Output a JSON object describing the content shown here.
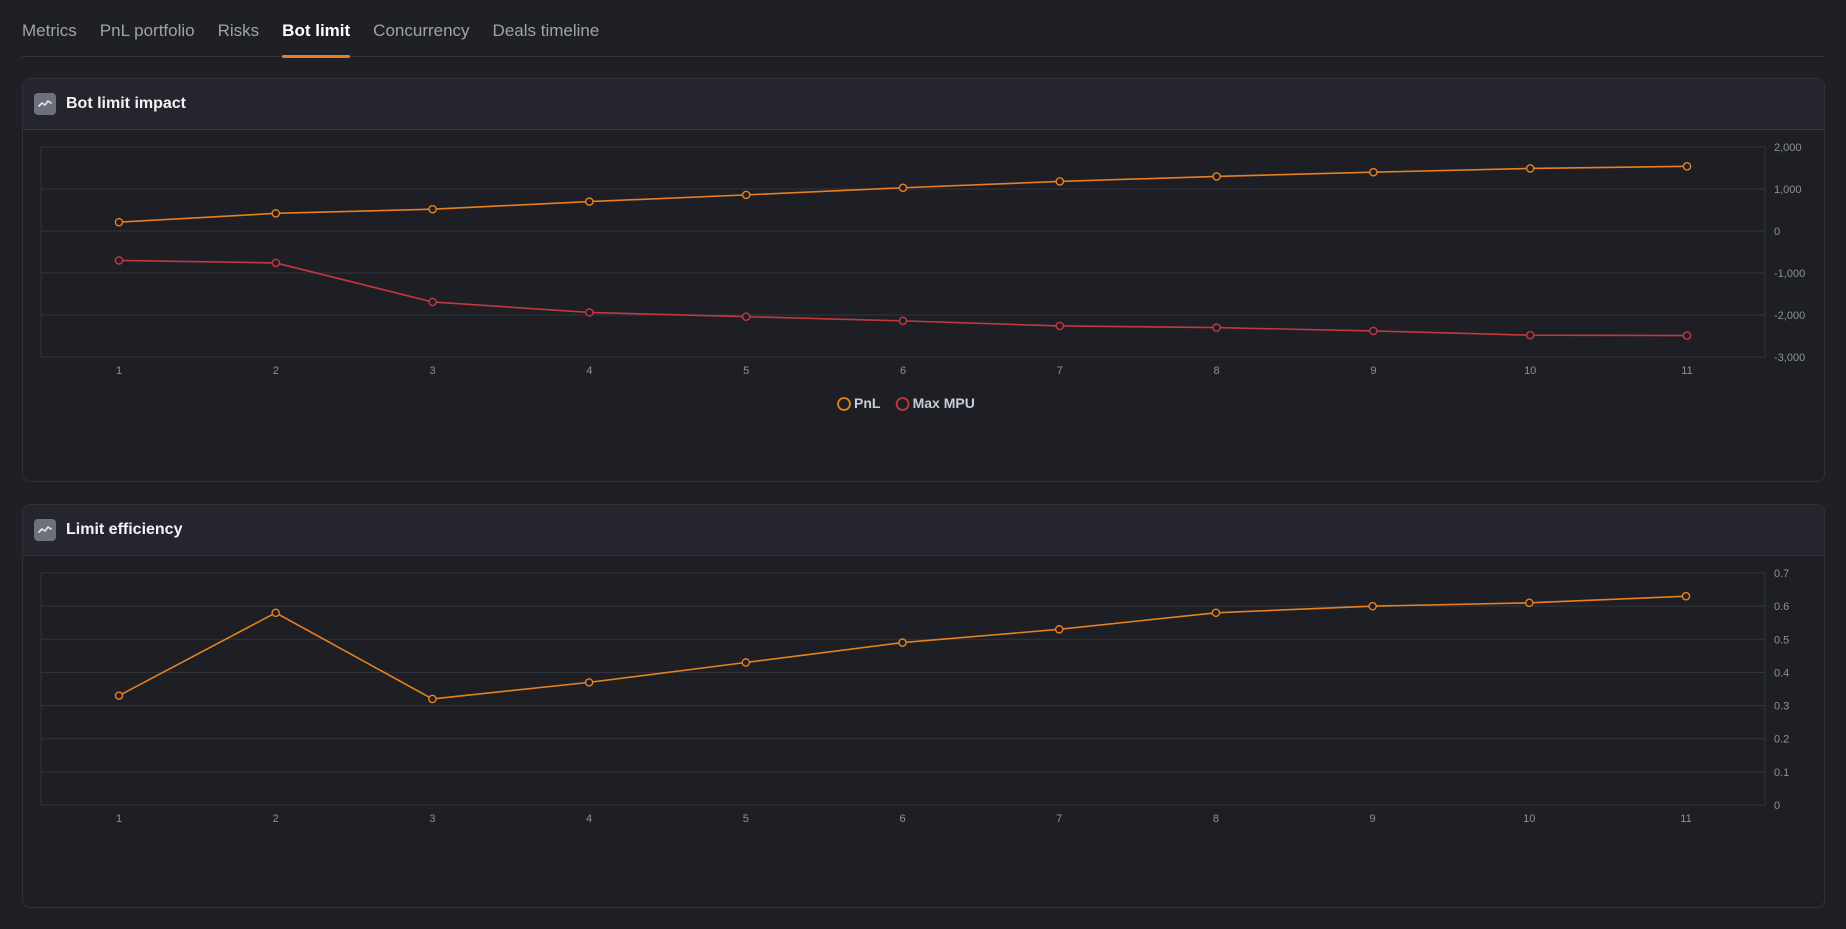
{
  "tabs": [
    {
      "label": "Metrics",
      "active": false
    },
    {
      "label": "PnL portfolio",
      "active": false
    },
    {
      "label": "Risks",
      "active": false
    },
    {
      "label": "Bot limit",
      "active": true
    },
    {
      "label": "Concurrency",
      "active": false
    },
    {
      "label": "Deals timeline",
      "active": false
    }
  ],
  "panels": {
    "impact": {
      "title": "Bot limit impact",
      "icon": "line-chart-icon"
    },
    "efficiency": {
      "title": "Limit efficiency",
      "icon": "line-chart-icon"
    }
  },
  "colors": {
    "pnl": "#e8801f",
    "max_mpu": "#c0393f",
    "grid": "#33353d",
    "tick": "#8e919b"
  },
  "chart_data": [
    {
      "type": "line",
      "x": [
        1,
        2,
        3,
        4,
        5,
        6,
        7,
        8,
        9,
        10,
        11
      ],
      "ylim": [
        -3000,
        2000
      ],
      "yticks": [
        2000,
        1000,
        0,
        -1000,
        -2000,
        -3000
      ],
      "ytick_labels": [
        "2,000",
        "1,000",
        "0",
        "-1,000",
        "-2,000",
        "-3,000"
      ],
      "grid": true,
      "y_axis_position": "right",
      "legend_position": "bottom-center",
      "series": [
        {
          "name": "PnL",
          "color": "#e8801f",
          "values": [
            210,
            420,
            520,
            700,
            860,
            1030,
            1180,
            1300,
            1400,
            1490,
            1540
          ]
        },
        {
          "name": "Max MPU",
          "color": "#c0393f",
          "values": [
            -700,
            -760,
            -1690,
            -1940,
            -2040,
            -2140,
            -2260,
            -2300,
            -2380,
            -2480,
            -2490
          ]
        }
      ]
    },
    {
      "type": "line",
      "x": [
        1,
        2,
        3,
        4,
        5,
        6,
        7,
        8,
        9,
        10,
        11
      ],
      "ylim": [
        0,
        0.7
      ],
      "yticks": [
        0.7,
        0.6,
        0.5,
        0.4,
        0.3,
        0.2,
        0.1,
        0
      ],
      "ytick_labels": [
        "0.7",
        "0.6",
        "0.5",
        "0.4",
        "0.3",
        "0.2",
        "0.1",
        "0"
      ],
      "grid": true,
      "y_axis_position": "right",
      "series": [
        {
          "color": "#e8801f",
          "values": [
            0.33,
            0.58,
            0.32,
            0.37,
            0.43,
            0.49,
            0.53,
            0.58,
            0.6,
            0.61,
            0.63
          ]
        }
      ]
    }
  ]
}
